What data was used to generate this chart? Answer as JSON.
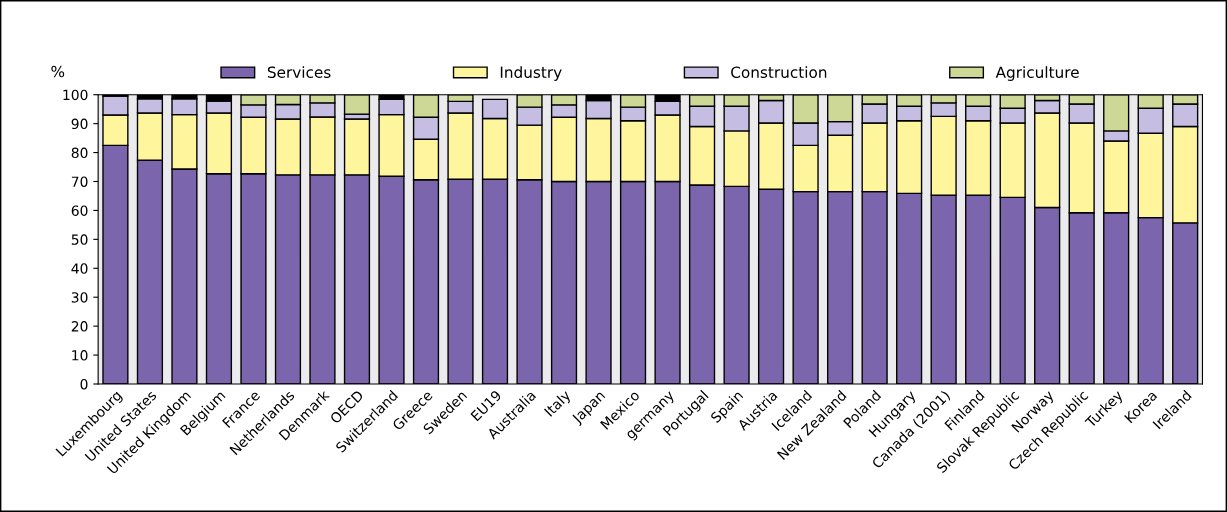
{
  "chart_data": {
    "type": "bar",
    "stacked": true,
    "ylabel": "%",
    "categories": [
      "Luxembourg",
      "United States",
      "United Kingdom",
      "Belgium",
      "France",
      "Netherlands",
      "Denmark",
      "OECD",
      "Switzerland",
      "Greece",
      "Sweden",
      "EU19",
      "Australia",
      "Italy",
      "Japan",
      "Mexico",
      "germany",
      "Portugal",
      "Spain",
      "Austria",
      "Iceland",
      "New Zealand",
      "Poland",
      "Hungary",
      "Canada (2001)",
      "Finland",
      "Slovak Republic",
      "Norway",
      "Czech Republic",
      "Turkey",
      "Korea",
      "Ireland"
    ],
    "series": [
      {
        "name": "Services",
        "color": "#7b66ad",
        "values": [
          82.5,
          77.4,
          74.3,
          72.7,
          72.7,
          72.3,
          72.3,
          72.3,
          71.8,
          70.6,
          70.8,
          70.8,
          70.6,
          70.0,
          70.0,
          70.0,
          70.0,
          68.8,
          68.3,
          67.3,
          66.5,
          66.5,
          66.5,
          65.9,
          65.3,
          65.3,
          64.5,
          61.0,
          59.2,
          59.2,
          57.5,
          55.7
        ]
      },
      {
        "name": "Industry",
        "color": "#fff59d",
        "values": [
          10.5,
          16.3,
          18.8,
          21.0,
          19.5,
          19.3,
          20.0,
          19.3,
          21.3,
          14.0,
          22.9,
          21.0,
          18.9,
          22.2,
          21.8,
          21.0,
          23.0,
          20.2,
          19.2,
          22.9,
          16.0,
          19.5,
          23.7,
          25.1,
          27.2,
          25.7,
          25.7,
          32.7,
          31.0,
          24.8,
          29.2,
          33.3
        ]
      },
      {
        "name": "Construction",
        "color": "#c6bde3",
        "values": [
          6.5,
          4.9,
          5.5,
          4.1,
          4.3,
          5.0,
          4.9,
          1.7,
          5.3,
          7.6,
          4.0,
          6.6,
          6.2,
          4.3,
          6.2,
          4.7,
          4.7,
          7.0,
          8.5,
          7.8,
          7.7,
          4.7,
          6.6,
          5.0,
          4.7,
          5.0,
          5.1,
          4.3,
          6.6,
          3.5,
          8.6,
          7.8
        ]
      },
      {
        "name": "Agriculture",
        "color": "#cdd897",
        "values": [
          null,
          null,
          null,
          null,
          3.5,
          3.4,
          2.8,
          6.7,
          null,
          7.8,
          2.3,
          null,
          4.3,
          3.5,
          null,
          4.3,
          null,
          4.0,
          4.0,
          2.0,
          9.8,
          9.3,
          3.2,
          4.0,
          2.8,
          4.0,
          4.7,
          2.0,
          3.2,
          12.5,
          4.7,
          3.2
        ]
      },
      {
        "color": "#000000",
        "values": [
          0.5,
          1.4,
          1.4,
          2.2,
          null,
          null,
          null,
          null,
          1.6,
          null,
          null,
          null,
          null,
          null,
          2.0,
          null,
          2.3,
          null,
          null,
          null,
          null,
          null,
          null,
          null,
          null,
          null,
          null,
          null,
          null,
          null,
          null,
          null
        ]
      }
    ],
    "ylim": [
      0,
      100
    ],
    "yticks": [
      0,
      10,
      20,
      30,
      40,
      50,
      60,
      70,
      80,
      90,
      100
    ],
    "grid": false,
    "legend": "top"
  }
}
